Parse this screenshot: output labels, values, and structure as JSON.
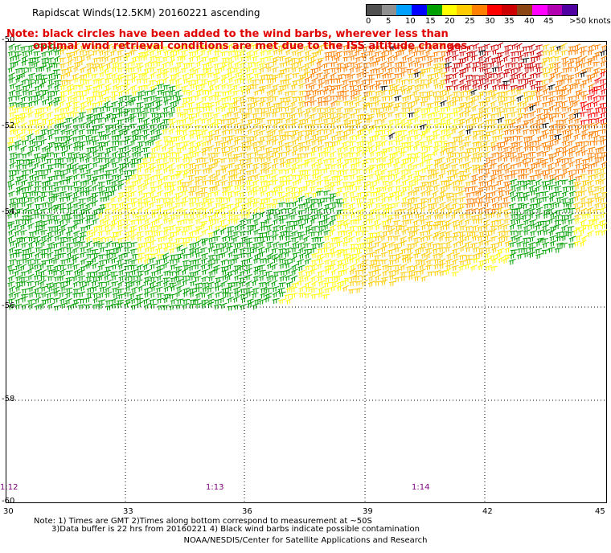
{
  "title": "Rapidscat Winds(12.5KM) 20160221 ascending",
  "note_line1": "Note: black circles have been added to the wind barbs, wherever less than",
  "note_line2": "optimal wind retrieval conditions are met due to the ISS altitude changes.",
  "colorbar": {
    "colors": [
      "#505050",
      "#909090",
      "#00a0ff",
      "#0000ff",
      "#00a000",
      "#ffff00",
      "#ffcc00",
      "#ff8000",
      "#ff0000",
      "#cc0000",
      "#8b4513",
      "#ff00ff",
      "#b000b0",
      "#5000a0"
    ],
    "labels": [
      "0",
      "5",
      "10",
      "15",
      "20",
      "25",
      "30",
      "35",
      "40",
      "45",
      ">50 knots"
    ]
  },
  "map": {
    "lat_labels": [
      "-50",
      "-52",
      "-54",
      "-56",
      "-58",
      "-60"
    ],
    "lon_labels": [
      "30",
      "33",
      "36",
      "39",
      "42",
      "45"
    ],
    "time_labels": [
      "1:12",
      "1:13",
      "1:14"
    ]
  },
  "footnote_line1": "Note: 1) Times are GMT 2)Times along bottom correspond to measurement at ~50S",
  "footnote_line2": "3)Data buffer is 22 hrs from 20160221 4) Black wind barbs indicate possible contamination",
  "credit": "NOAA/NESDIS/Center for Satellite Applications and Research"
}
